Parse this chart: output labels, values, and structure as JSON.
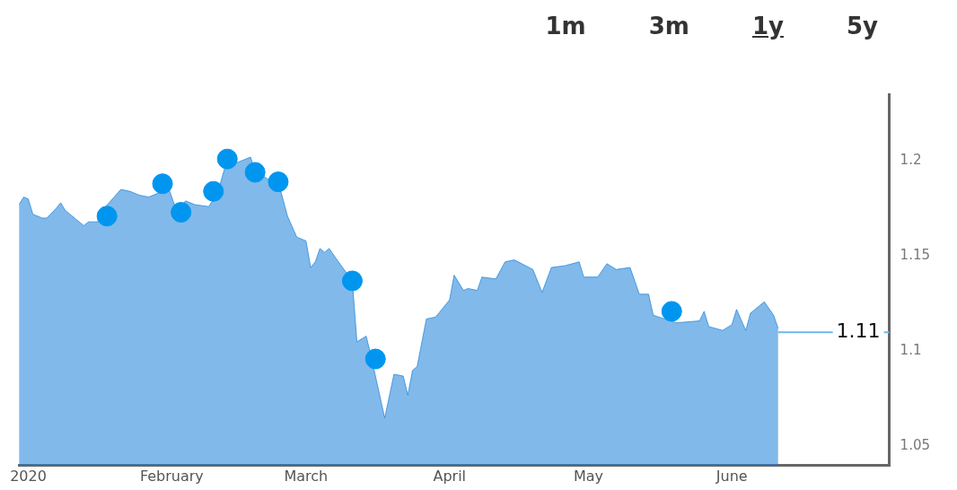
{
  "chart_data": {
    "type": "area",
    "annotations": [
      "1m",
      "3m",
      "1y",
      "5y"
    ],
    "x": [
      "2019-12-30",
      "2019-12-31",
      "2020-01-01",
      "2020-01-02",
      "2020-01-04",
      "2020-01-05",
      "2020-01-07",
      "2020-01-08",
      "2020-01-09",
      "2020-01-11",
      "2020-01-13",
      "2020-01-14",
      "2020-01-16",
      "2020-01-17",
      "2020-01-21",
      "2020-01-23",
      "2020-01-25",
      "2020-01-27",
      "2020-01-29",
      "2020-01-31",
      "2020-02-02",
      "2020-02-04",
      "2020-02-06",
      "2020-02-09",
      "2020-02-11",
      "2020-02-13",
      "2020-02-15",
      "2020-02-18",
      "2020-02-19",
      "2020-02-22",
      "2020-02-24",
      "2020-02-26",
      "2020-02-28",
      "2020-03-01",
      "2020-03-02",
      "2020-03-03",
      "2020-03-04",
      "2020-03-05",
      "2020-03-06",
      "2020-03-08",
      "2020-03-11",
      "2020-03-12",
      "2020-03-14",
      "2020-03-15",
      "2020-03-18",
      "2020-03-20",
      "2020-03-22",
      "2020-03-23",
      "2020-03-24",
      "2020-03-25",
      "2020-03-27",
      "2020-03-29",
      "2020-04-01",
      "2020-04-02",
      "2020-04-04",
      "2020-04-05",
      "2020-04-07",
      "2020-04-08",
      "2020-04-11",
      "2020-04-13",
      "2020-04-15",
      "2020-04-19",
      "2020-04-21",
      "2020-04-23",
      "2020-04-26",
      "2020-04-29",
      "2020-04-30",
      "2020-05-03",
      "2020-05-05",
      "2020-05-07",
      "2020-05-10",
      "2020-05-12",
      "2020-05-14",
      "2020-05-15",
      "2020-05-20",
      "2020-05-25",
      "2020-05-26",
      "2020-05-27",
      "2020-05-30",
      "2020-06-01",
      "2020-06-02",
      "2020-06-04",
      "2020-06-05",
      "2020-06-08",
      "2020-06-10",
      "2020-06-11"
    ],
    "series": [
      {
        "color": "#1a7fd9",
        "values": [
          1.177,
          1.181,
          1.18,
          1.172,
          1.17,
          1.17,
          1.175,
          1.178,
          1.174,
          1.17,
          1.166,
          1.168,
          1.168,
          1.174,
          1.185,
          1.184,
          1.182,
          1.181,
          1.183,
          1.188,
          1.174,
          1.179,
          1.177,
          1.176,
          1.184,
          1.201,
          1.199,
          1.202,
          1.195,
          1.19,
          1.189,
          1.171,
          1.16,
          1.158,
          1.144,
          1.147,
          1.154,
          1.152,
          1.154,
          1.147,
          1.137,
          1.105,
          1.108,
          1.098,
          1.065,
          1.088,
          1.087,
          1.077,
          1.09,
          1.092,
          1.117,
          1.118,
          1.127,
          1.14,
          1.132,
          1.133,
          1.132,
          1.139,
          1.138,
          1.147,
          1.148,
          1.143,
          1.131,
          1.144,
          1.145,
          1.147,
          1.139,
          1.139,
          1.146,
          1.143,
          1.144,
          1.13,
          1.13,
          1.119,
          1.115,
          1.116,
          1.121,
          1.113,
          1.111,
          1.114,
          1.122,
          1.111,
          1.12,
          1.126,
          1.119,
          1.112
        ]
      },
      {
        "type": "scatter",
        "color": "#0096f0",
        "x": [
          "2020-01-18",
          "2020-01-30",
          "2020-02-03",
          "2020-02-10",
          "2020-02-13",
          "2020-02-19",
          "2020-02-24",
          "2020-03-11",
          "2020-03-16",
          "2020-05-19"
        ],
        "values": [
          1.171,
          1.188,
          1.173,
          1.184,
          1.201,
          1.194,
          1.189,
          1.137,
          1.096,
          1.121
        ]
      }
    ],
    "xlim": [
      "2019-12-30",
      "2020-07-05"
    ],
    "xticks": [
      {
        "value": "2020-01-01",
        "label": "2020"
      },
      {
        "value": "2020-02-01",
        "label": "February"
      },
      {
        "value": "2020-03-01",
        "label": "March"
      },
      {
        "value": "2020-04-01",
        "label": "April"
      },
      {
        "value": "2020-05-01",
        "label": "May"
      },
      {
        "value": "2020-06-01",
        "label": "June"
      }
    ],
    "ylim": [
      1.04,
      1.235
    ],
    "yticks": [
      1.05,
      1.1,
      1.15,
      1.2
    ],
    "ref_lines": [
      {
        "axis": "y",
        "value": 1.11,
        "label": "1.11",
        "color": "#6ab8f0"
      }
    ],
    "grid": false,
    "legend": false
  }
}
